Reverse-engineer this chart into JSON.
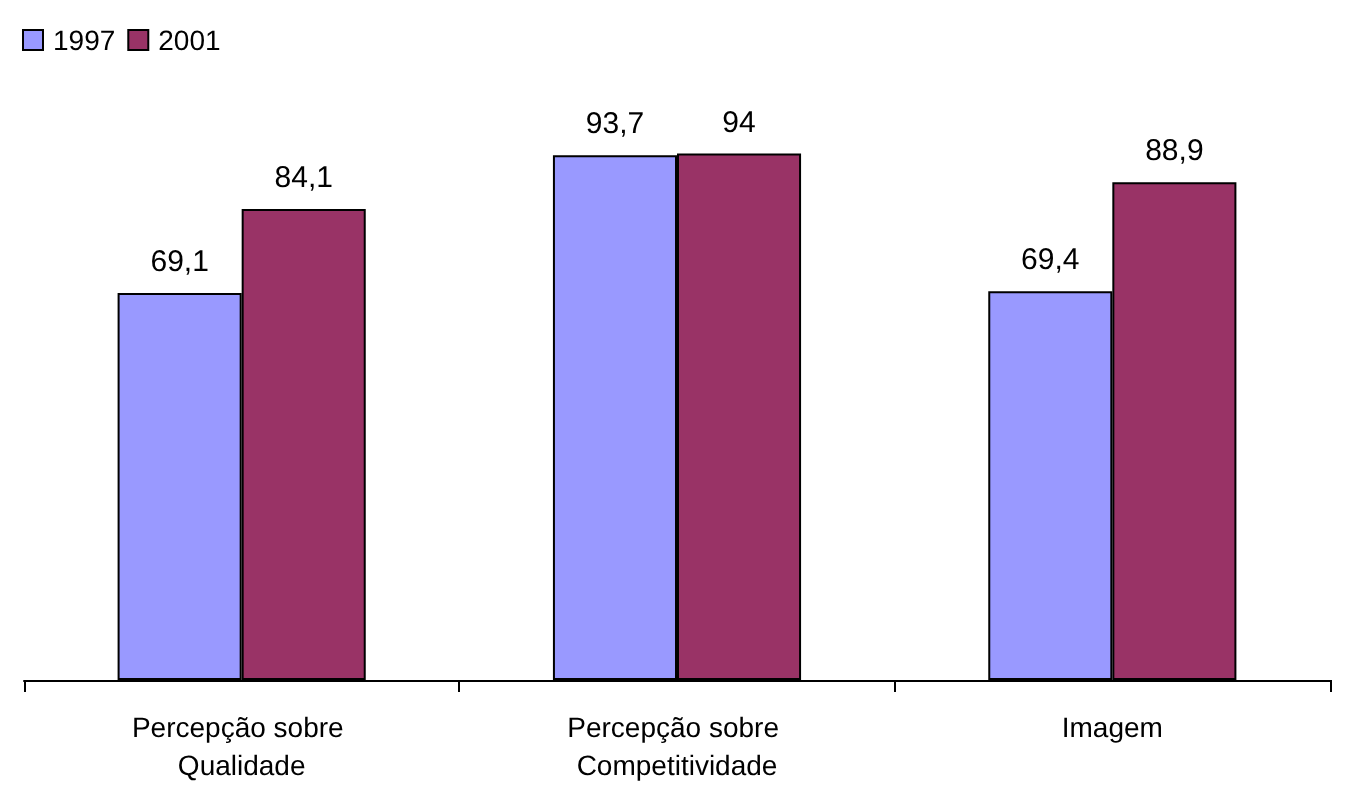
{
  "chart_data": {
    "type": "bar",
    "categories": [
      "Percepção sobre Qualidade",
      "Percepção sobre Competitividade",
      "Imagem"
    ],
    "series": [
      {
        "name": "1997",
        "color": "#9999ff",
        "values": [
          69.1,
          93.7,
          69.4
        ],
        "value_labels": [
          "69,1",
          "93,7",
          "69,4"
        ]
      },
      {
        "name": "2001",
        "color": "#993366",
        "values": [
          84.1,
          94,
          88.9
        ],
        "value_labels": [
          "84,1",
          "94",
          "88,9"
        ]
      }
    ],
    "legend": "top left"
  }
}
